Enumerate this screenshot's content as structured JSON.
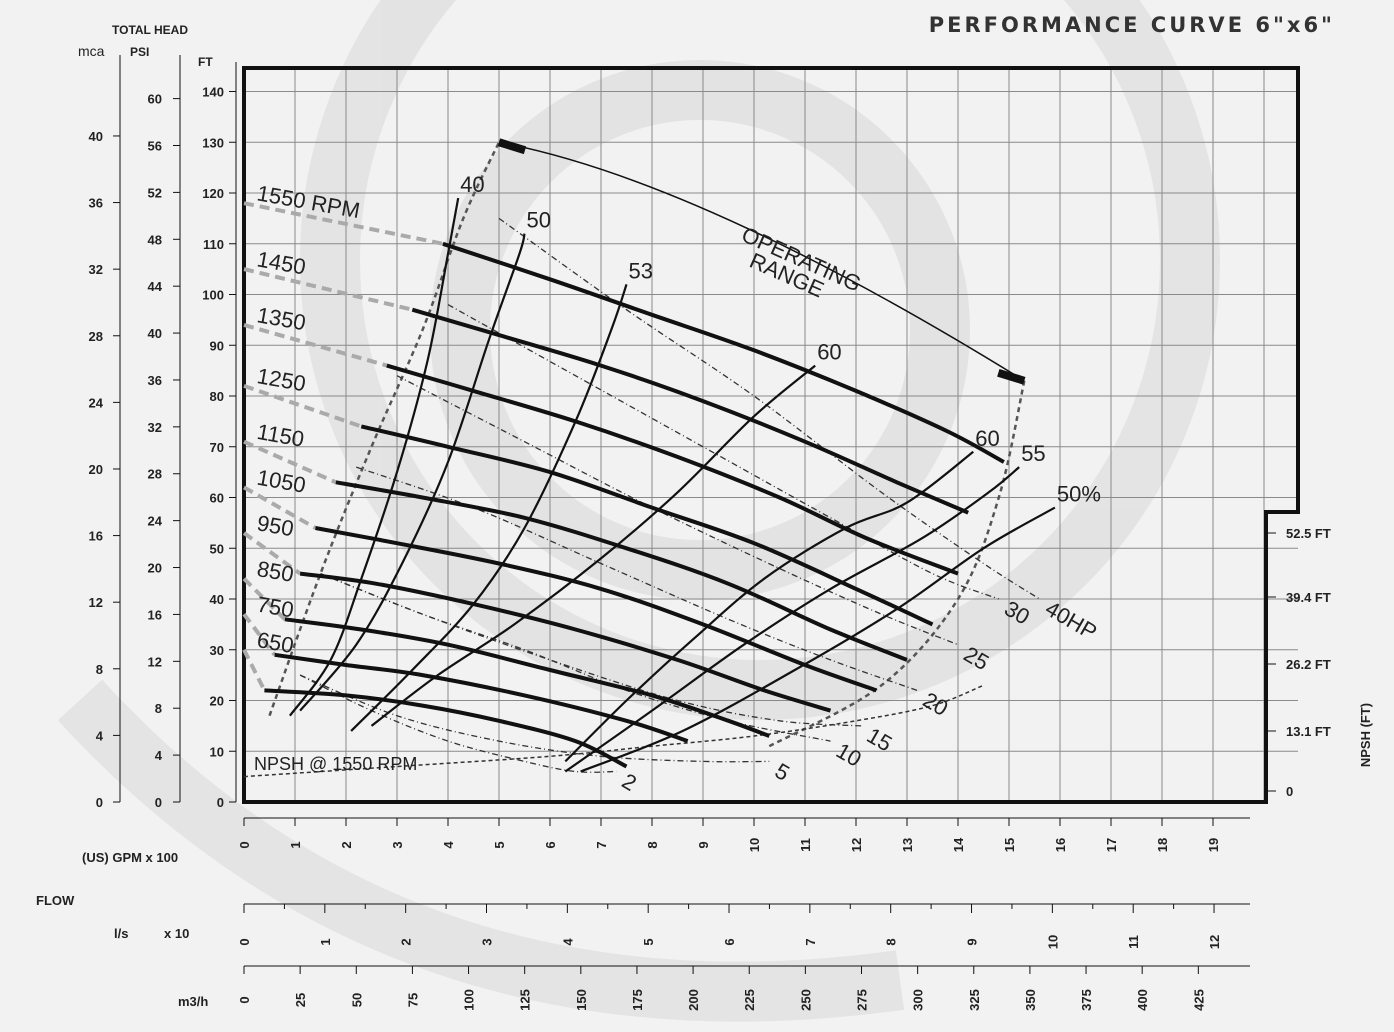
{
  "title": "PERFORMANCE CURVE 6\"x6\"",
  "colors": {
    "ink": "#111111",
    "grid": "#8a8a8a",
    "background": "#f2f2f2",
    "swirl": "#dcdcdc"
  },
  "labels": {
    "total_head": "TOTAL HEAD",
    "mca": "mca",
    "psi": "PSI",
    "ft": "FT",
    "gpm": "(US) GPM  x 100",
    "flow": "FLOW",
    "ls": "l/s",
    "x10": "x 10",
    "m3h": "m3/h",
    "npsh_axis": "NPSH  (FT)",
    "operating_range_1": "OPERATING",
    "operating_range_2": "RANGE",
    "npsh_curve": "NPSH @ 1550 RPM"
  },
  "chart_data": {
    "type": "line",
    "x_unit": "GPM x 100",
    "y_unit": "FT",
    "xlim": [
      0,
      20
    ],
    "ylim": [
      0,
      145
    ],
    "grid": true,
    "axes": {
      "ft_ticks": [
        "0",
        "10",
        "20",
        "30",
        "40",
        "50",
        "60",
        "70",
        "80",
        "90",
        "100",
        "110",
        "120",
        "130",
        "140"
      ],
      "psi_ticks": [
        "0",
        "4",
        "8",
        "12",
        "16",
        "20",
        "24",
        "28",
        "32",
        "36",
        "40",
        "44",
        "48",
        "52",
        "56",
        "60"
      ],
      "mca_ticks": [
        "0",
        "4",
        "8",
        "12",
        "16",
        "20",
        "24",
        "28",
        "32",
        "36",
        "40"
      ],
      "gpm_ticks": [
        "0",
        "1",
        "2",
        "3",
        "4",
        "5",
        "6",
        "7",
        "8",
        "9",
        "10",
        "11",
        "12",
        "13",
        "14",
        "15",
        "16",
        "17",
        "18",
        "19"
      ],
      "ls_ticks": [
        "0",
        "1",
        "2",
        "3",
        "4",
        "5",
        "6",
        "7",
        "8",
        "9",
        "10",
        "11",
        "12"
      ],
      "m3h_ticks": [
        "0",
        "25",
        "50",
        "75",
        "100",
        "125",
        "150",
        "175",
        "200",
        "225",
        "250",
        "275",
        "300",
        "325",
        "350",
        "375",
        "400",
        "425"
      ],
      "npsh_ticks": [
        "0",
        "13.1 FT",
        "26.2 FT",
        "39.4 FT",
        "52.5 FT"
      ]
    },
    "rpm_curves": [
      {
        "label": "1550 RPM",
        "points": [
          [
            3.9,
            110
          ],
          [
            6,
            103
          ],
          [
            8,
            96
          ],
          [
            10,
            89
          ],
          [
            12,
            81
          ],
          [
            13.8,
            73
          ],
          [
            14.9,
            67
          ]
        ]
      },
      {
        "label": "1450",
        "points": [
          [
            3.3,
            97
          ],
          [
            5,
            92
          ],
          [
            7,
            86
          ],
          [
            9,
            79
          ],
          [
            11,
            71
          ],
          [
            12.8,
            63
          ],
          [
            14.2,
            57
          ]
        ]
      },
      {
        "label": "1350",
        "points": [
          [
            2.8,
            86
          ],
          [
            4.5,
            81
          ],
          [
            6.5,
            75
          ],
          [
            8.5,
            68
          ],
          [
            10.5,
            60
          ],
          [
            12.2,
            52
          ],
          [
            14,
            45
          ]
        ]
      },
      {
        "label": "1250",
        "points": [
          [
            2.3,
            74
          ],
          [
            4,
            70
          ],
          [
            6,
            65
          ],
          [
            8,
            58
          ],
          [
            10,
            51
          ],
          [
            12,
            42
          ],
          [
            13.5,
            35
          ]
        ]
      },
      {
        "label": "1150",
        "points": [
          [
            1.8,
            63
          ],
          [
            3.5,
            60
          ],
          [
            5.5,
            56
          ],
          [
            7.5,
            50
          ],
          [
            9.5,
            43
          ],
          [
            11.5,
            34
          ],
          [
            13,
            28
          ]
        ]
      },
      {
        "label": "1050",
        "points": [
          [
            1.4,
            54
          ],
          [
            3,
            51
          ],
          [
            5,
            47
          ],
          [
            7,
            42
          ],
          [
            9,
            35
          ],
          [
            11,
            27
          ],
          [
            12.4,
            22
          ]
        ]
      },
      {
        "label": "950",
        "points": [
          [
            1.1,
            45
          ],
          [
            2.6,
            43
          ],
          [
            4.5,
            39
          ],
          [
            6.5,
            34
          ],
          [
            8.5,
            28
          ],
          [
            10.2,
            22
          ],
          [
            11.5,
            18
          ]
        ]
      },
      {
        "label": "850",
        "points": [
          [
            0.8,
            36
          ],
          [
            2.3,
            34
          ],
          [
            4,
            31
          ],
          [
            6,
            26
          ],
          [
            8,
            21
          ],
          [
            9.5,
            16
          ],
          [
            10.3,
            13
          ]
        ]
      },
      {
        "label": "750",
        "points": [
          [
            0.6,
            29
          ],
          [
            2,
            27
          ],
          [
            3.5,
            25
          ],
          [
            5.5,
            21
          ],
          [
            7.5,
            16
          ],
          [
            8.7,
            12
          ]
        ]
      },
      {
        "label": "650",
        "points": [
          [
            0.4,
            22
          ],
          [
            2,
            21
          ],
          [
            3.5,
            19
          ],
          [
            5,
            16
          ],
          [
            6.5,
            12
          ],
          [
            7.5,
            7
          ]
        ]
      }
    ],
    "efficiency_curves": [
      {
        "label": "40",
        "points": [
          [
            0.9,
            17
          ],
          [
            1.7,
            28
          ],
          [
            2.3,
            44
          ],
          [
            3,
            65
          ],
          [
            3.6,
            87
          ],
          [
            4,
            108
          ],
          [
            4.2,
            119
          ]
        ]
      },
      {
        "label": "50",
        "points": [
          [
            1.1,
            18
          ],
          [
            2.2,
            31
          ],
          [
            3.1,
            47
          ],
          [
            4,
            67
          ],
          [
            4.8,
            91
          ],
          [
            5.4,
            108
          ],
          [
            5.5,
            112
          ]
        ]
      },
      {
        "label": "53",
        "points": [
          [
            2.1,
            14
          ],
          [
            3.3,
            26
          ],
          [
            4.5,
            39
          ],
          [
            5.5,
            54
          ],
          [
            6.5,
            75
          ],
          [
            7.2,
            93
          ],
          [
            7.5,
            102
          ]
        ]
      },
      {
        "label": "60",
        "points": [
          [
            2.5,
            15
          ],
          [
            3.8,
            25
          ],
          [
            5.3,
            35
          ],
          [
            7,
            48
          ],
          [
            8.5,
            61
          ],
          [
            10,
            76
          ],
          [
            11.2,
            86
          ]
        ]
      },
      {
        "label": "60",
        "points": [
          [
            6.3,
            8
          ],
          [
            7.5,
            20
          ],
          [
            8.8,
            32
          ],
          [
            10.2,
            44
          ],
          [
            11.8,
            54
          ],
          [
            13,
            59
          ],
          [
            14.3,
            69
          ]
        ]
      },
      {
        "label": "55",
        "points": [
          [
            6.3,
            6
          ],
          [
            8,
            18
          ],
          [
            9.8,
            31
          ],
          [
            11.5,
            42
          ],
          [
            13.3,
            52
          ],
          [
            14.6,
            61
          ],
          [
            15.2,
            66
          ]
        ]
      },
      {
        "label": "50%",
        "points": [
          [
            6.6,
            6
          ],
          [
            8.6,
            14
          ],
          [
            10.8,
            26
          ],
          [
            12.8,
            38
          ],
          [
            14.5,
            50
          ],
          [
            15.9,
            58
          ]
        ]
      }
    ],
    "power_curves": [
      {
        "label": "40HP",
        "points": [
          [
            5,
            115
          ],
          [
            7.5,
            97
          ],
          [
            10,
            80
          ],
          [
            12.5,
            61
          ],
          [
            14.5,
            47
          ],
          [
            15.6,
            40
          ]
        ]
      },
      {
        "label": "30",
        "points": [
          [
            4,
            98
          ],
          [
            6.5,
            84
          ],
          [
            9,
            70
          ],
          [
            11.5,
            56
          ],
          [
            13.5,
            45
          ],
          [
            14.8,
            40
          ]
        ]
      },
      {
        "label": "25",
        "points": [
          [
            3,
            84
          ],
          [
            5.5,
            71
          ],
          [
            8,
            58
          ],
          [
            10.5,
            46
          ],
          [
            12.5,
            37
          ],
          [
            14,
            31
          ]
        ]
      },
      {
        "label": "20",
        "points": [
          [
            2.2,
            66
          ],
          [
            4.5,
            58
          ],
          [
            7,
            47
          ],
          [
            9.5,
            36
          ],
          [
            11.5,
            28
          ],
          [
            13.2,
            22
          ]
        ]
      },
      {
        "label": "15",
        "points": [
          [
            1.5,
            45
          ],
          [
            3.5,
            37
          ],
          [
            6,
            28
          ],
          [
            8.5,
            20
          ],
          [
            10.5,
            16
          ],
          [
            12.1,
            15
          ]
        ]
      },
      {
        "label": "10",
        "points": [
          [
            1.5,
            45
          ],
          [
            3.5,
            37
          ],
          [
            5.5,
            30
          ],
          [
            7.5,
            22
          ],
          [
            9.5,
            16
          ],
          [
            11.5,
            12
          ]
        ]
      },
      {
        "label": "5",
        "points": [
          [
            1.1,
            25
          ],
          [
            3,
            17
          ],
          [
            5,
            12
          ],
          [
            7,
            9
          ],
          [
            9,
            8
          ],
          [
            10.3,
            8
          ]
        ]
      },
      {
        "label": "2",
        "points": [
          [
            1.1,
            25
          ],
          [
            2.5,
            18
          ],
          [
            4,
            12
          ],
          [
            5.5,
            8
          ],
          [
            6.5,
            6
          ],
          [
            7.3,
            6
          ]
        ]
      }
    ],
    "npsh_curve": {
      "label": "NPSH @ 1550 RPM",
      "points": [
        [
          0,
          5
        ],
        [
          3,
          7
        ],
        [
          6,
          9
        ],
        [
          8,
          11
        ],
        [
          10,
          13
        ],
        [
          12,
          16
        ],
        [
          13.5,
          19
        ],
        [
          14.5,
          23
        ]
      ]
    },
    "operating_range": {
      "label": "OPERATING RANGE",
      "from": [
        5,
        130
      ],
      "to": [
        15.3,
        83
      ]
    },
    "rpm_labels": [
      "1550 RPM",
      "1450",
      "1350",
      "1250",
      "1150",
      "1050",
      "950",
      "850",
      "750",
      "650"
    ],
    "efficiency_labels": [
      "40",
      "50",
      "53",
      "60",
      "60",
      "55",
      "50%"
    ],
    "power_labels": [
      "40HP",
      "30",
      "25",
      "20",
      "15",
      "10",
      "5",
      "2"
    ]
  }
}
